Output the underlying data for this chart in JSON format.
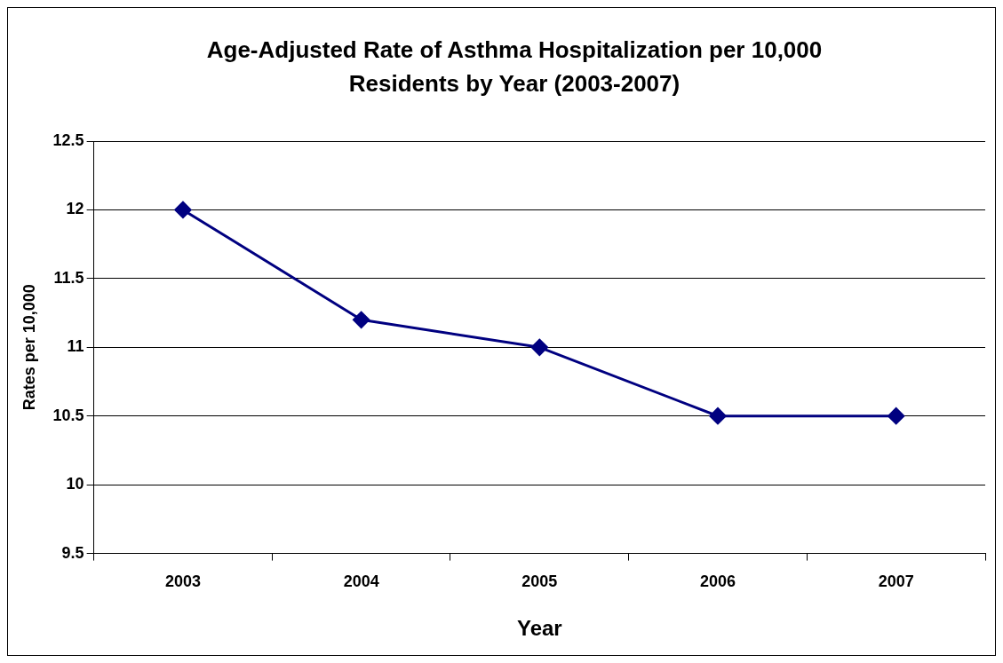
{
  "chart_data": {
    "type": "line",
    "title": "Age-Adjusted Rate of Asthma Hospitalization per 10,000 Residents by Year (2003-2007)",
    "xlabel": "Year",
    "ylabel": "Rates per 10,000",
    "categories": [
      "2003",
      "2004",
      "2005",
      "2006",
      "2007"
    ],
    "series": [
      {
        "color": "#000080",
        "values": [
          12,
          11.2,
          11,
          10.5,
          10.5
        ]
      }
    ],
    "ylim": [
      9.5,
      12.5
    ],
    "yticks": [
      9.5,
      10,
      10.5,
      11,
      11.5,
      12,
      12.5
    ],
    "grid": "y",
    "legend": false,
    "marker": "diamond",
    "line_style": "solid"
  }
}
